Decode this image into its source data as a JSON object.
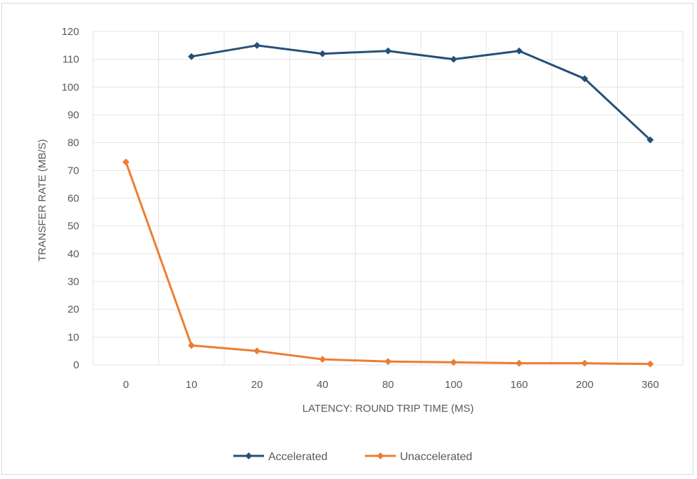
{
  "chart_data": {
    "type": "line",
    "title": "",
    "xlabel": "LATENCY: ROUND TRIP TIME (MS)",
    "ylabel": "TRANSFER RATE (MB/S)",
    "categories": [
      "0",
      "10",
      "20",
      "40",
      "80",
      "100",
      "160",
      "200",
      "360"
    ],
    "ylim": [
      0,
      120
    ],
    "yticks": [
      0,
      10,
      20,
      30,
      40,
      50,
      60,
      70,
      80,
      90,
      100,
      110,
      120
    ],
    "grid": true,
    "legend_position": "bottom",
    "series": [
      {
        "name": "Accelerated",
        "color": "#264f78",
        "values": [
          null,
          111,
          115,
          112,
          113,
          110,
          113,
          103,
          81
        ]
      },
      {
        "name": "Unaccelerated",
        "color": "#ed7d31",
        "values": [
          73,
          7,
          5,
          2,
          1.2,
          0.9,
          0.6,
          0.6,
          0.3
        ]
      }
    ]
  }
}
